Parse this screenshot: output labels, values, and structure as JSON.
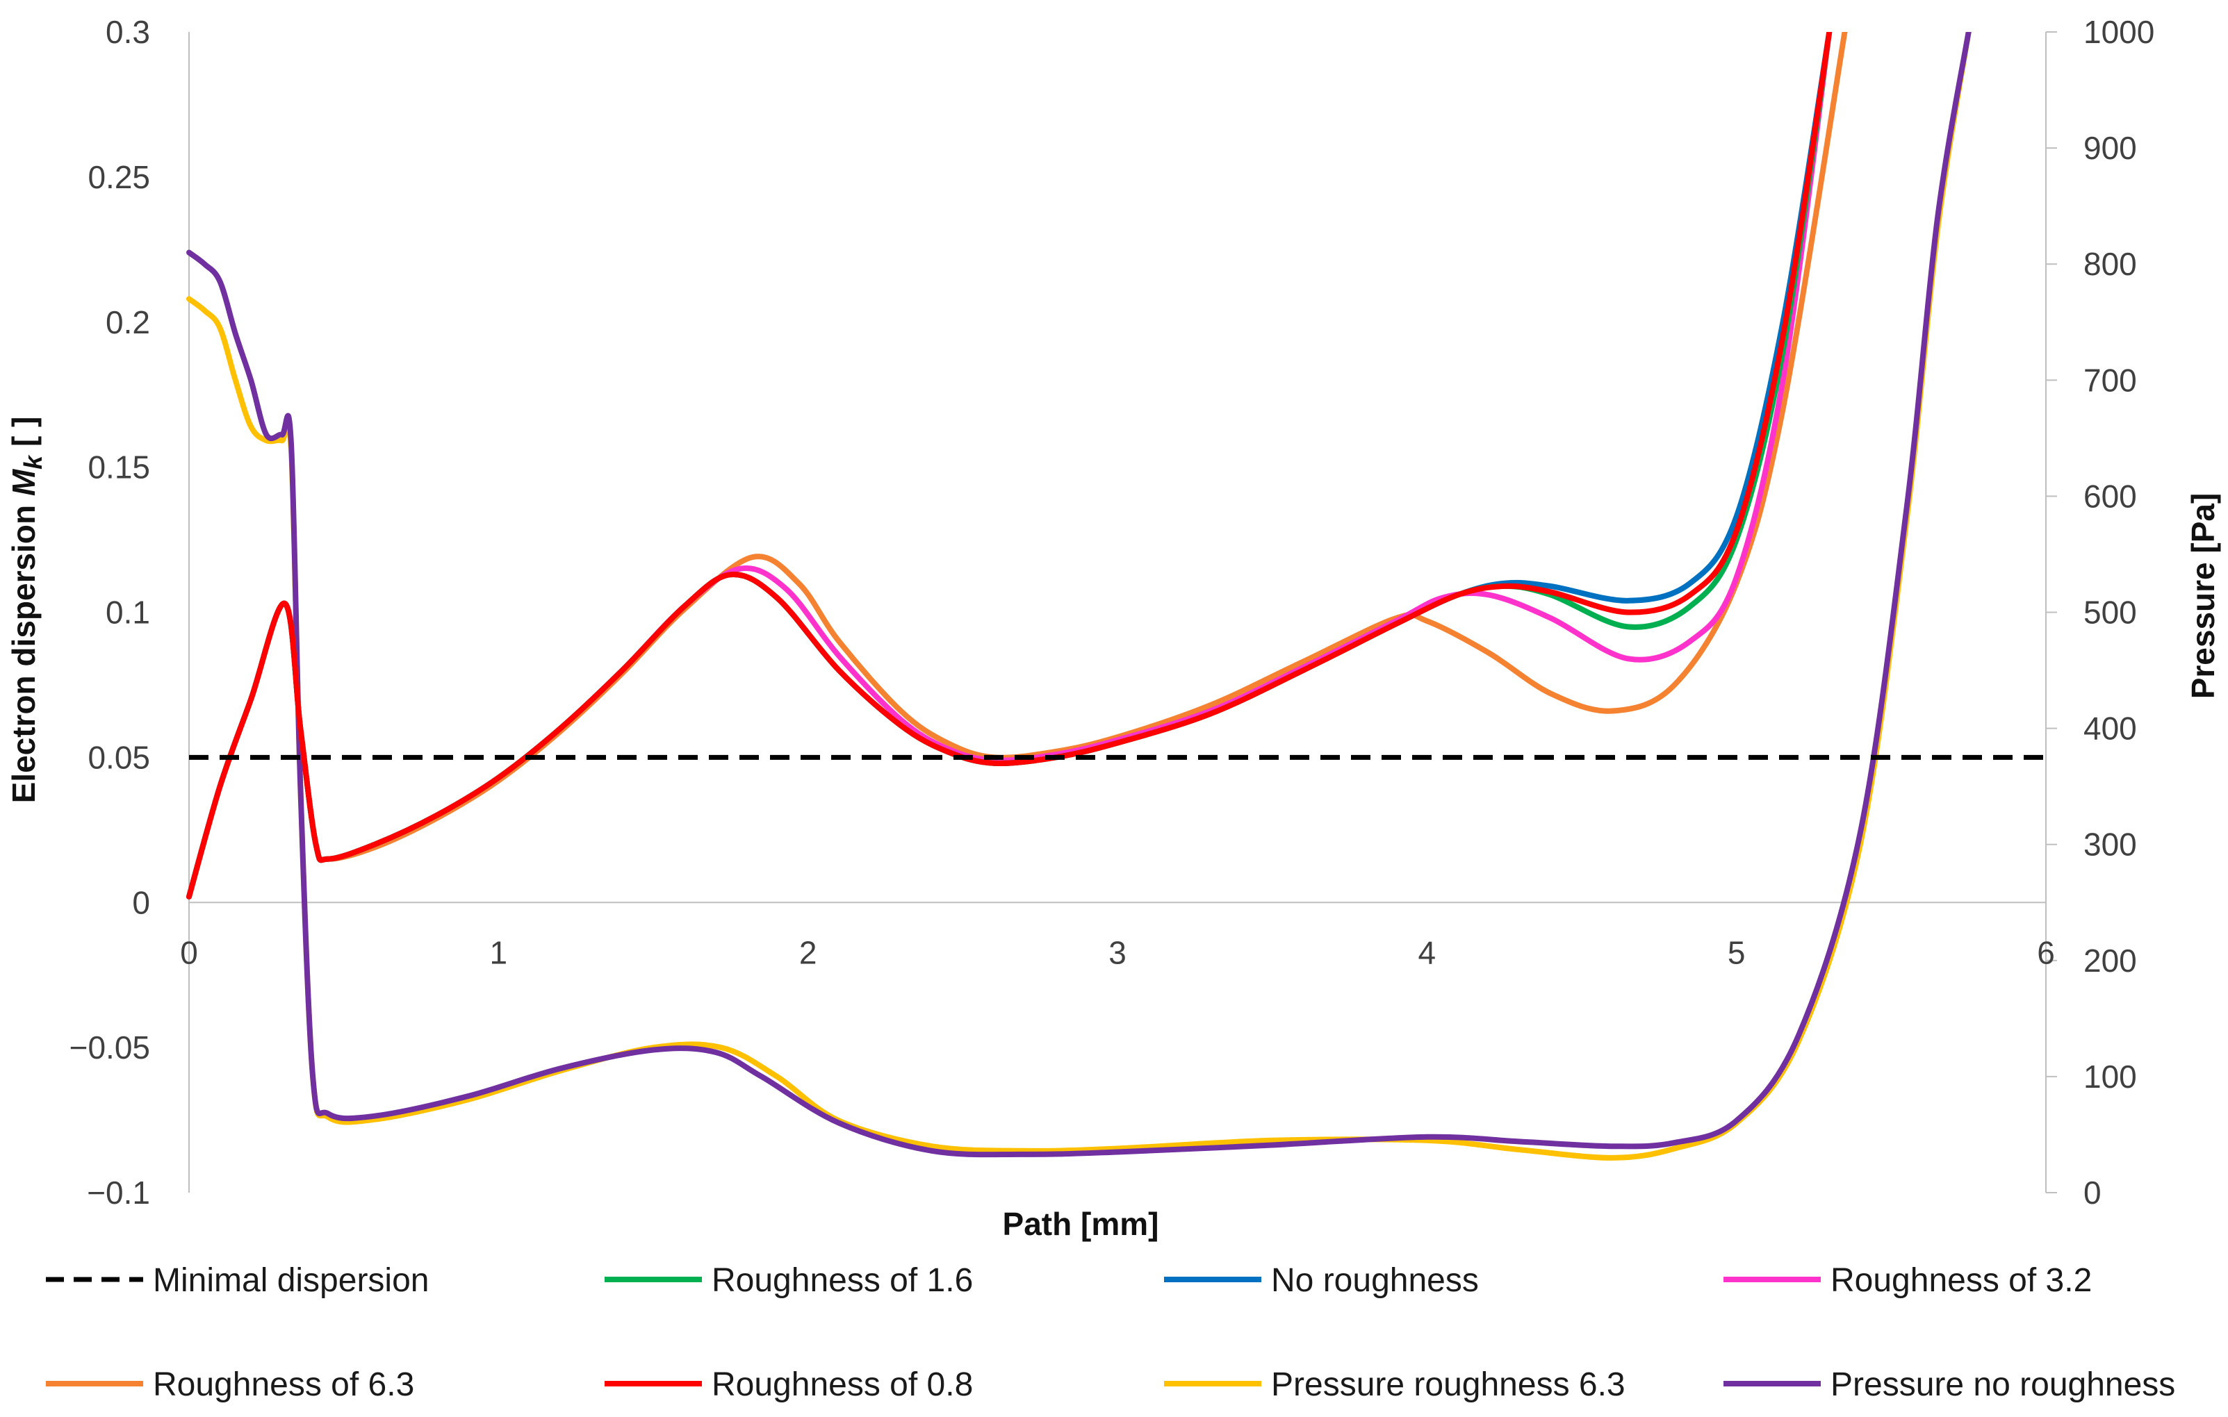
{
  "chart_data": {
    "type": "line",
    "title": "",
    "xlabel": "Path [mm]",
    "ylabel": "Electron dispersion",
    "ylabel_symbol": "M",
    "ylabel_subscript": "k",
    "ylabel_unit": "[ ]",
    "y2label": "Pressure [Pa]",
    "xlim": [
      0,
      6
    ],
    "ylim": [
      -0.1,
      0.3
    ],
    "y2lim": [
      0,
      1000
    ],
    "grid": false,
    "legend_position": "bottom",
    "x_ticks": [
      "0",
      "1",
      "2",
      "3",
      "4",
      "5",
      "6"
    ],
    "y_ticks": [
      "0.3",
      "0.25",
      "0.2",
      "0.15",
      "0.1",
      "0.05",
      "0",
      "−0.05",
      "−0.1"
    ],
    "y2_ticks": [
      "1000",
      "900",
      "800",
      "700",
      "600",
      "500",
      "400",
      "300",
      "200",
      "100",
      "0"
    ],
    "series": [
      {
        "name": "Minimal dispersion",
        "axis": "left",
        "color": "#000000",
        "dash": true,
        "x": [
          0,
          6
        ],
        "y": [
          0.05,
          0.05
        ]
      },
      {
        "name": "Roughness of 1.6",
        "axis": "left",
        "color": "#00b050",
        "x": [
          0,
          0.1,
          0.2,
          0.31,
          0.36,
          0.41,
          0.45,
          0.6,
          0.8,
          1.0,
          1.2,
          1.4,
          1.6,
          1.75,
          1.9,
          2.1,
          2.3,
          2.45,
          2.6,
          2.8,
          3.0,
          3.3,
          3.6,
          3.9,
          4.1,
          4.25,
          4.4,
          4.65,
          4.85,
          5.0,
          5.15,
          5.3
        ],
        "y": [
          0.002,
          0.04,
          0.07,
          0.103,
          0.06,
          0.02,
          0.015,
          0.02,
          0.03,
          0.043,
          0.06,
          0.08,
          0.102,
          0.113,
          0.105,
          0.08,
          0.061,
          0.052,
          0.048,
          0.05,
          0.055,
          0.065,
          0.08,
          0.096,
          0.106,
          0.109,
          0.106,
          0.095,
          0.102,
          0.125,
          0.19,
          0.3
        ]
      },
      {
        "name": "No roughness",
        "axis": "left",
        "color": "#0070c0",
        "x": [
          0,
          0.1,
          0.2,
          0.31,
          0.36,
          0.41,
          0.45,
          0.6,
          0.8,
          1.0,
          1.2,
          1.4,
          1.6,
          1.75,
          1.9,
          2.1,
          2.3,
          2.45,
          2.6,
          2.8,
          3.0,
          3.3,
          3.6,
          3.9,
          4.1,
          4.25,
          4.4,
          4.65,
          4.85,
          5.0,
          5.15,
          5.3
        ],
        "y": [
          0.002,
          0.04,
          0.07,
          0.103,
          0.06,
          0.02,
          0.015,
          0.02,
          0.03,
          0.043,
          0.06,
          0.08,
          0.102,
          0.113,
          0.105,
          0.08,
          0.061,
          0.052,
          0.048,
          0.05,
          0.055,
          0.065,
          0.08,
          0.096,
          0.106,
          0.11,
          0.109,
          0.104,
          0.11,
          0.133,
          0.2,
          0.3
        ]
      },
      {
        "name": "Roughness of 3.2",
        "axis": "left",
        "color": "#ff33cc",
        "x": [
          0,
          0.1,
          0.2,
          0.31,
          0.36,
          0.41,
          0.45,
          0.6,
          0.8,
          1.0,
          1.2,
          1.4,
          1.6,
          1.78,
          1.93,
          2.1,
          2.3,
          2.45,
          2.6,
          2.8,
          3.0,
          3.3,
          3.6,
          3.9,
          4.05,
          4.2,
          4.4,
          4.65,
          4.85,
          5.0,
          5.15,
          5.3
        ],
        "y": [
          0.002,
          0.04,
          0.07,
          0.103,
          0.06,
          0.02,
          0.015,
          0.02,
          0.03,
          0.043,
          0.06,
          0.08,
          0.102,
          0.115,
          0.108,
          0.085,
          0.063,
          0.053,
          0.049,
          0.051,
          0.056,
          0.066,
          0.081,
          0.097,
          0.105,
          0.106,
          0.098,
          0.084,
          0.09,
          0.112,
          0.18,
          0.3
        ]
      },
      {
        "name": "Roughness of 6.3",
        "axis": "left",
        "color": "#f58231",
        "x": [
          0,
          0.1,
          0.2,
          0.31,
          0.36,
          0.41,
          0.45,
          0.6,
          0.8,
          1.0,
          1.2,
          1.4,
          1.6,
          1.82,
          1.97,
          2.1,
          2.3,
          2.45,
          2.6,
          2.8,
          3.0,
          3.3,
          3.6,
          3.9,
          4.0,
          4.2,
          4.4,
          4.6,
          4.8,
          5.0,
          5.15,
          5.35
        ],
        "y": [
          0.002,
          0.04,
          0.07,
          0.103,
          0.06,
          0.02,
          0.015,
          0.019,
          0.029,
          0.042,
          0.059,
          0.079,
          0.101,
          0.119,
          0.11,
          0.09,
          0.066,
          0.055,
          0.05,
          0.052,
          0.057,
          0.068,
          0.083,
          0.098,
          0.097,
          0.086,
          0.072,
          0.066,
          0.075,
          0.11,
          0.17,
          0.3
        ]
      },
      {
        "name": "Roughness of 0.8",
        "axis": "left",
        "color": "#ff0000",
        "x": [
          0,
          0.1,
          0.2,
          0.31,
          0.36,
          0.41,
          0.45,
          0.6,
          0.8,
          1.0,
          1.2,
          1.4,
          1.6,
          1.75,
          1.9,
          2.1,
          2.3,
          2.45,
          2.6,
          2.8,
          3.0,
          3.3,
          3.6,
          3.9,
          4.1,
          4.25,
          4.4,
          4.65,
          4.85,
          5.0,
          5.15,
          5.3
        ],
        "y": [
          0.002,
          0.04,
          0.07,
          0.103,
          0.06,
          0.02,
          0.015,
          0.02,
          0.03,
          0.043,
          0.06,
          0.08,
          0.102,
          0.113,
          0.105,
          0.08,
          0.061,
          0.052,
          0.048,
          0.05,
          0.055,
          0.065,
          0.08,
          0.096,
          0.106,
          0.109,
          0.107,
          0.1,
          0.106,
          0.128,
          0.195,
          0.3
        ]
      },
      {
        "name": "Pressure roughness 6.3",
        "axis": "right",
        "color": "#ffc000",
        "x": [
          0,
          0.05,
          0.1,
          0.15,
          0.2,
          0.25,
          0.3,
          0.33,
          0.36,
          0.4,
          0.45,
          0.6,
          0.9,
          1.2,
          1.5,
          1.72,
          1.9,
          2.1,
          2.4,
          2.7,
          3.0,
          3.5,
          4.0,
          4.3,
          4.6,
          4.8,
          5.0,
          5.2,
          5.4,
          5.55,
          5.65,
          5.75
        ],
        "y": [
          770,
          760,
          745,
          700,
          660,
          648,
          648,
          640,
          350,
          100,
          65,
          63,
          80,
          105,
          125,
          125,
          100,
          62,
          40,
          36,
          38,
          45,
          45,
          37,
          30,
          38,
          60,
          130,
          300,
          580,
          830,
          1000
        ]
      },
      {
        "name": "Pressure no roughness",
        "axis": "right",
        "color": "#7030a0",
        "x": [
          0,
          0.05,
          0.1,
          0.15,
          0.2,
          0.25,
          0.3,
          0.33,
          0.36,
          0.4,
          0.45,
          0.6,
          0.9,
          1.2,
          1.5,
          1.7,
          1.85,
          2.1,
          2.4,
          2.7,
          3.0,
          3.5,
          4.0,
          4.3,
          4.6,
          4.8,
          5.0,
          5.2,
          5.4,
          5.55,
          5.65,
          5.75
        ],
        "y": [
          810,
          800,
          785,
          740,
          700,
          653,
          653,
          645,
          350,
          100,
          68,
          66,
          83,
          107,
          123,
          121,
          100,
          60,
          36,
          33,
          35,
          41,
          48,
          44,
          40,
          43,
          62,
          135,
          310,
          590,
          840,
          1000
        ]
      }
    ]
  }
}
